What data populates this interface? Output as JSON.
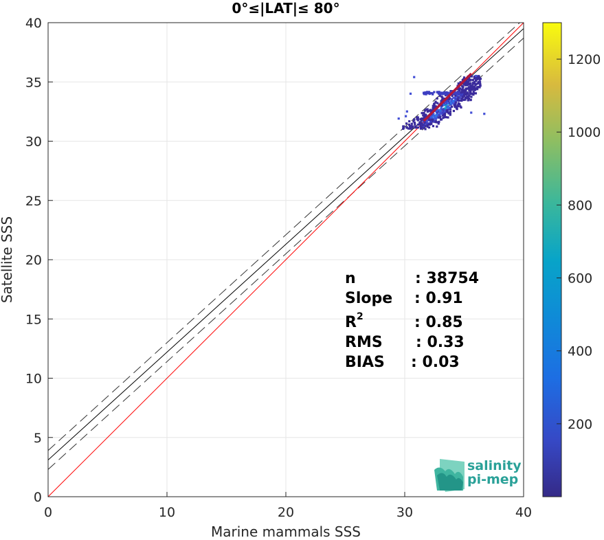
{
  "chart_data": {
    "type": "scatter",
    "subtype": "density-heatmap",
    "title": "0°≤|LAT|≤ 80°",
    "xlabel": "Marine mammals SSS",
    "ylabel": "Satellite SSS",
    "xlim": [
      0,
      40
    ],
    "ylim": [
      0,
      40
    ],
    "xticks": [
      0,
      10,
      20,
      30,
      40
    ],
    "yticks": [
      0,
      5,
      10,
      15,
      20,
      25,
      30,
      35,
      40
    ],
    "grid": true,
    "colorbar": {
      "colormap": "parula",
      "range": [
        0,
        1300
      ],
      "ticks": [
        200,
        400,
        600,
        800,
        1000,
        1200
      ]
    },
    "lines": {
      "one_to_one": {
        "color": "#ff0000",
        "slope": 1,
        "intercept": 0
      },
      "fit": {
        "color": "#000000",
        "slope": 0.91,
        "intercept": 3.1
      },
      "fit_upper": {
        "style": "dashed",
        "slope": 0.91,
        "intercept": 3.9
      },
      "fit_lower": {
        "style": "dashed",
        "slope": 0.91,
        "intercept": 2.3
      }
    },
    "density_cloud": {
      "x_range": [
        29.3,
        36.8
      ],
      "y_range": [
        31.0,
        35.6
      ],
      "center": [
        33,
        32.6
      ],
      "peak_count": 1300
    },
    "stats": [
      {
        "label": "n",
        "value": ": 38754"
      },
      {
        "label": "Slope",
        "value": ": 0.91"
      },
      {
        "label": "R",
        "sup": "2",
        "value": ": 0.85"
      },
      {
        "label": "RMS",
        "value": ": 0.33"
      },
      {
        "label": "BIAS",
        "value": ": 0.03"
      }
    ]
  },
  "logo": {
    "line1": "salinity",
    "line2": "pi-mep"
  }
}
